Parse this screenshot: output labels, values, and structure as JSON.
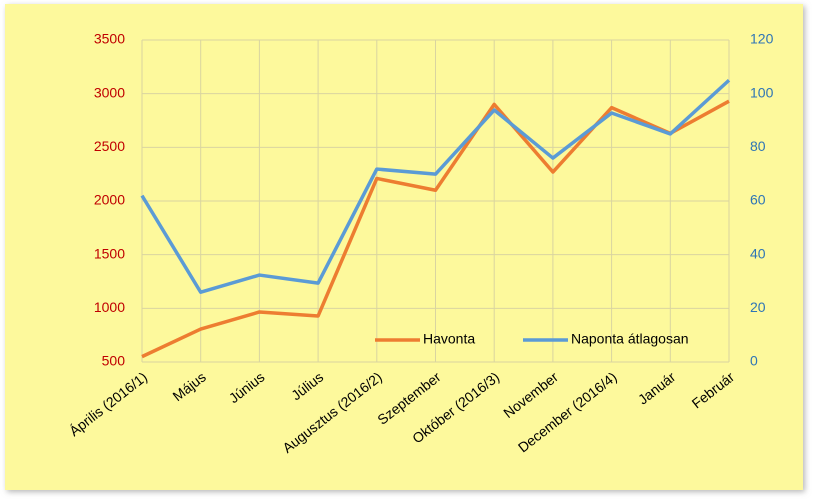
{
  "chart_data": {
    "type": "line",
    "categories": [
      "Április (2016/1)",
      "Május",
      "Június",
      "Július",
      "Augusztus (2016/2)",
      "Szeptember",
      "Október (2016/3)",
      "November",
      "December (2016/4)",
      "Január",
      "Február"
    ],
    "series": [
      {
        "name": "Havonta",
        "color": "#ed7d31",
        "values": [
          550,
          807,
          966,
          929,
          2210,
          2100,
          2900,
          2270,
          2870,
          2630,
          2930
        ]
      },
      {
        "name": "Naponta átlagosan",
        "color": "#5b9bd5",
        "axis": "y2",
        "values": [
          62,
          26,
          32.4,
          29.4,
          71.9,
          70,
          93.9,
          76,
          92.8,
          85,
          105
        ]
      }
    ],
    "ylim": [
      500,
      3500
    ],
    "yticks": [
      500,
      1000,
      1500,
      2000,
      2500,
      3000,
      3500
    ],
    "y2lim": [
      0,
      120
    ],
    "y2ticks": [
      0,
      20,
      40,
      60,
      80,
      100,
      120
    ],
    "grid": true,
    "legend": "bottom-right"
  }
}
